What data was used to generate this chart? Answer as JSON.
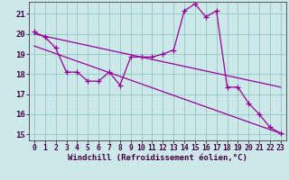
{
  "xlabel": "Windchill (Refroidissement éolien,°C)",
  "background_color": "#cce8e8",
  "grid_color": "#99cccc",
  "line_color": "#990099",
  "xlim": [
    -0.5,
    23.5
  ],
  "ylim": [
    14.7,
    21.6
  ],
  "yticks": [
    15,
    16,
    17,
    18,
    19,
    20,
    21
  ],
  "xticks": [
    0,
    1,
    2,
    3,
    4,
    5,
    6,
    7,
    8,
    9,
    10,
    11,
    12,
    13,
    14,
    15,
    16,
    17,
    18,
    19,
    20,
    21,
    22,
    23
  ],
  "curve_x": [
    0,
    1,
    2,
    3,
    4,
    5,
    6,
    7,
    8,
    9,
    10,
    11,
    12,
    13,
    14,
    15,
    16,
    17,
    18,
    19,
    20,
    21,
    22,
    23
  ],
  "curve_y": [
    20.1,
    19.85,
    19.3,
    18.1,
    18.1,
    17.65,
    17.65,
    18.1,
    17.45,
    18.85,
    18.85,
    18.85,
    19.0,
    19.2,
    21.15,
    21.5,
    20.85,
    21.15,
    17.35,
    17.35,
    16.55,
    16.0,
    15.35,
    15.05
  ],
  "line1_x": [
    0,
    23
  ],
  "line1_y": [
    20.0,
    17.35
  ],
  "line2_x": [
    0,
    23
  ],
  "line2_y": [
    19.4,
    15.05
  ],
  "markersize": 2.5,
  "linewidth": 0.9,
  "xlabel_fontsize": 6.5,
  "tick_fontsize": 6.5
}
